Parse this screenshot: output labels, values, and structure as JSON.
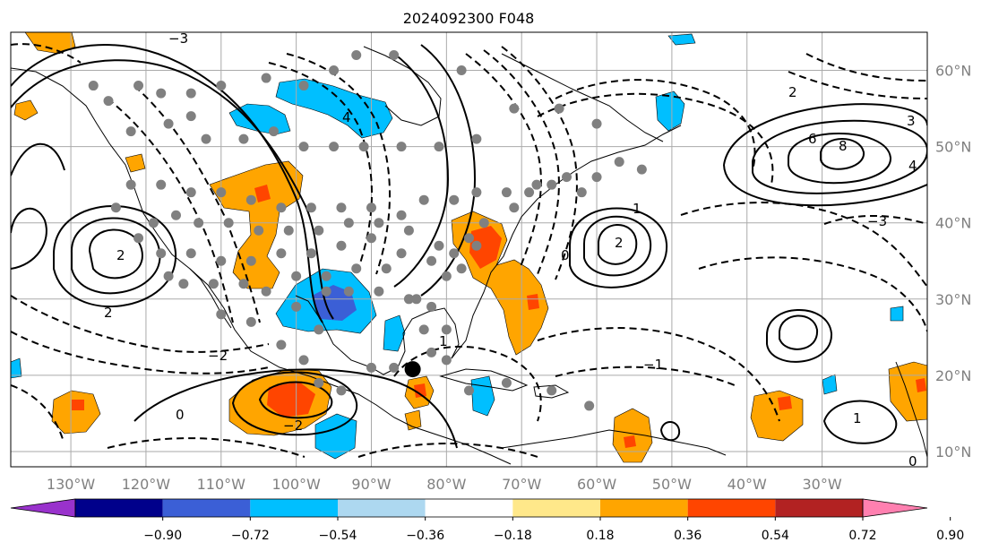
{
  "title": "2024092300 F048",
  "map": {
    "lon_range": [
      -138,
      -16
    ],
    "lat_range": [
      8,
      65
    ],
    "lon_ticks": [
      {
        "value": -130,
        "label": "130°W"
      },
      {
        "value": -120,
        "label": "120°W"
      },
      {
        "value": -110,
        "label": "110°W"
      },
      {
        "value": -100,
        "label": "100°W"
      },
      {
        "value": -90,
        "label": "90°W"
      },
      {
        "value": -80,
        "label": "80°W"
      },
      {
        "value": -70,
        "label": "70°W"
      },
      {
        "value": -60,
        "label": "60°W"
      },
      {
        "value": -50,
        "label": "50°W"
      },
      {
        "value": -40,
        "label": "40°W"
      },
      {
        "value": -30,
        "label": "30°W"
      }
    ],
    "lat_ticks": [
      {
        "value": 60,
        "label": "60°N"
      },
      {
        "value": 50,
        "label": "50°N"
      },
      {
        "value": 40,
        "label": "40°N"
      },
      {
        "value": 30,
        "label": "30°N"
      },
      {
        "value": 20,
        "label": "20°N"
      },
      {
        "value": 10,
        "label": "10°N"
      }
    ],
    "grid": true,
    "grid_color": "#aaaaaa",
    "storm_marker": {
      "lon": -84.5,
      "lat": 20.8,
      "color": "#000000"
    },
    "station_color": "#808080"
  },
  "colorbar": {
    "orientation": "horizontal",
    "extend": "both",
    "ticks": [
      "−0.90",
      "−0.72",
      "−0.54",
      "−0.36",
      "−0.18",
      "0.18",
      "0.36",
      "0.54",
      "0.72",
      "0.90"
    ],
    "colors": [
      "#9932cc",
      "#00008b",
      "#3b5fd6",
      "#00bfff",
      "#add8f0",
      "#ffffff",
      "#ffe88a",
      "#ffa500",
      "#ff4500",
      "#b22222",
      "#ff80b0"
    ]
  },
  "contour_labels": [
    "0",
    "−1",
    "−2",
    "−3",
    "1",
    "2",
    "3",
    "4",
    "6",
    "8"
  ]
}
